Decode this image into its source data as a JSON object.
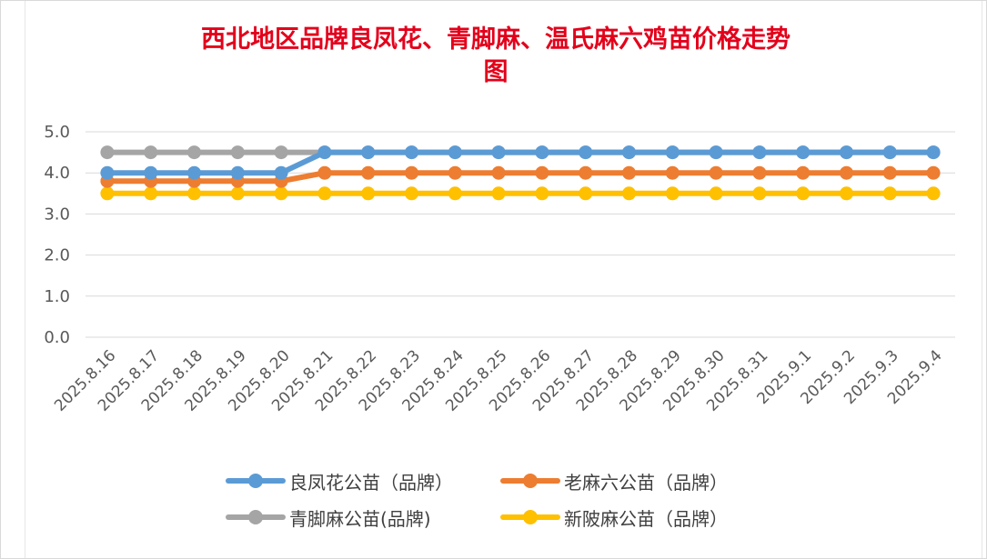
{
  "chart_data": {
    "type": "line",
    "title": "西北地区品牌良凤花、青脚麻、温氏麻六鸡苗价格走势图",
    "title_lines": [
      "西北地区品牌良凤花、青脚麻、温氏麻六鸡苗价格走势",
      "图"
    ],
    "xlabel": "",
    "ylabel": "",
    "ylim": [
      0,
      5
    ],
    "yticks": [
      "0.0",
      "1.0",
      "2.0",
      "3.0",
      "4.0",
      "5.0"
    ],
    "grid": true,
    "legend_position": "bottom",
    "categories": [
      "2025.8.16",
      "2025.8.17",
      "2025.8.18",
      "2025.8.19",
      "2025.8.20",
      "2025.8.21",
      "2025.8.22",
      "2025.8.23",
      "2025.8.24",
      "2025.8.25",
      "2025.8.26",
      "2025.8.27",
      "2025.8.28",
      "2025.8.29",
      "2025.8.30",
      "2025.8.31",
      "2025.9.1",
      "2025.9.2",
      "2025.9.3",
      "2025.9.4"
    ],
    "series": [
      {
        "name": "良凤花公苗（品牌）",
        "color": "#5b9bd5",
        "values": [
          4.0,
          4.0,
          4.0,
          4.0,
          4.0,
          4.5,
          4.5,
          4.5,
          4.5,
          4.5,
          4.5,
          4.5,
          4.5,
          4.5,
          4.5,
          4.5,
          4.5,
          4.5,
          4.5,
          4.5
        ]
      },
      {
        "name": "老麻六公苗（品牌）",
        "color": "#ed7d31",
        "values": [
          3.8,
          3.8,
          3.8,
          3.8,
          3.8,
          4.0,
          4.0,
          4.0,
          4.0,
          4.0,
          4.0,
          4.0,
          4.0,
          4.0,
          4.0,
          4.0,
          4.0,
          4.0,
          4.0,
          4.0
        ]
      },
      {
        "name": "青脚麻公苗(品牌)",
        "color": "#a5a5a5",
        "values": [
          4.5,
          4.5,
          4.5,
          4.5,
          4.5,
          4.5,
          4.5,
          4.5,
          4.5,
          4.5,
          4.5,
          4.5,
          4.5,
          4.5,
          4.5,
          4.5,
          4.5,
          4.5,
          4.5,
          4.5
        ]
      },
      {
        "name": "新陂麻公苗（品牌）",
        "color": "#ffc000",
        "values": [
          3.5,
          3.5,
          3.5,
          3.5,
          3.5,
          3.5,
          3.5,
          3.5,
          3.5,
          3.5,
          3.5,
          3.5,
          3.5,
          3.5,
          3.5,
          3.5,
          3.5,
          3.5,
          3.5,
          3.5
        ]
      }
    ]
  }
}
